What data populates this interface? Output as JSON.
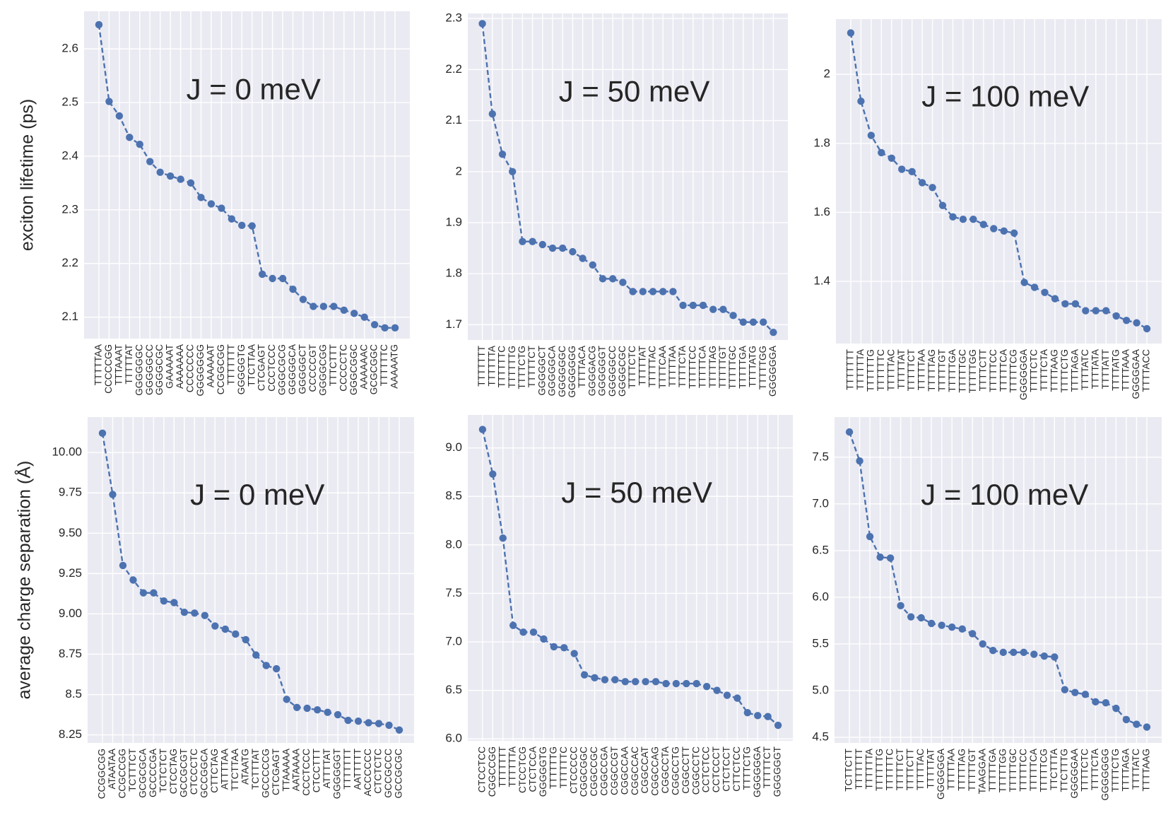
{
  "chart_data": [
    {
      "type": "line",
      "annotation": "J = 0 meV",
      "ylabel": "exciton lifetime (ps)",
      "color": "#4c72b0",
      "categories": [
        "TTTTTAA",
        "CCCCCGG",
        "TTTAAAT",
        "TTTTTAT",
        "GGGGGGC",
        "GGGGGCC",
        "GGGGCGC",
        "GAAAAAT",
        "AAAAAAA",
        "CCCCCCC",
        "GGGGGGG",
        "AAAAAAT",
        "CCGGCGG",
        "TTTTTTT",
        "GGGGGTG",
        "TTCTTAA",
        "CTCGAGT",
        "CCCTCCC",
        "GGGCGCG",
        "GGGGGCA",
        "GGGGGCT",
        "CCCCCGT",
        "GGGGCGG",
        "TTTCTTT",
        "CCCCCTC",
        "GGGCGGC",
        "AAAAAAC",
        "GCGCGGC",
        "TTTTTTC",
        "AAAAATG"
      ],
      "values": [
        2.645,
        2.502,
        2.475,
        2.435,
        2.422,
        2.39,
        2.37,
        2.363,
        2.357,
        2.35,
        2.323,
        2.311,
        2.303,
        2.283,
        2.271,
        2.27,
        2.18,
        2.172,
        2.172,
        2.152,
        2.133,
        2.12,
        2.12,
        2.12,
        2.113,
        2.107,
        2.1,
        2.086,
        2.08,
        2.08
      ],
      "ylim": [
        2.06,
        2.67
      ],
      "yticks": [
        2.1,
        2.2,
        2.3,
        2.4,
        2.5,
        2.6
      ],
      "grid": true
    },
    {
      "type": "line",
      "annotation": "J = 50 meV",
      "color": "#4c72b0",
      "categories": [
        "TTTTTTT",
        "TTTTTTA",
        "TTTTTTC",
        "TTTTTTG",
        "TTTTCTG",
        "TTTTTCT",
        "GGGGGCT",
        "GGGGGCA",
        "GGGGGGC",
        "GGGGGGG",
        "TTTTACA",
        "GGGGACG",
        "GGGGGGT",
        "GGGGGCC",
        "GGGGCGC",
        "TTTTCTC",
        "TTTTTAT",
        "TTTTTAC",
        "TTTTCAA",
        "TTTTTAA",
        "TTTTCTA",
        "TTTTTCC",
        "TTTTTCA",
        "TTTTTAG",
        "TTTTTGT",
        "TTTTTGC",
        "TTTTTGA",
        "TTTTATG",
        "TTTTTGG",
        "GGGGGGA"
      ],
      "values": [
        2.29,
        2.113,
        2.034,
        2.0,
        1.863,
        1.863,
        1.857,
        1.85,
        1.85,
        1.843,
        1.83,
        1.817,
        1.79,
        1.79,
        1.783,
        1.765,
        1.765,
        1.765,
        1.765,
        1.765,
        1.738,
        1.738,
        1.738,
        1.73,
        1.73,
        1.718,
        1.705,
        1.705,
        1.705,
        1.685
      ],
      "ylim": [
        1.67,
        2.31
      ],
      "yticks": [
        1.7,
        1.8,
        1.9,
        2.0,
        2.1,
        2.2,
        2.3
      ],
      "grid": true
    },
    {
      "type": "line",
      "annotation": "J = 100 meV",
      "color": "#4c72b0",
      "categories": [
        "TTTTTTT",
        "TTTTTTA",
        "TTTTTTG",
        "TTTTTTC",
        "TTTTTAC",
        "TTTTTAT",
        "TTTTTCT",
        "TTTTTAA",
        "TTTTTAG",
        "TTTTTGT",
        "TTTTTGA",
        "TTTTTGC",
        "TTTTTGG",
        "TTTTCTT",
        "TTTTTCC",
        "TTTTTCA",
        "TTTTTCG",
        "GGGGGGA",
        "TTTTCTC",
        "TTTTCTA",
        "TTTTAAG",
        "TTTTCTG",
        "TTTTAGA",
        "TTTTATC",
        "TTTTATA",
        "TTTTATT",
        "TTTTATG",
        "TTTTAAA",
        "GGGGGAA",
        "TTTTACC"
      ],
      "values": [
        2.12,
        1.922,
        1.823,
        1.773,
        1.757,
        1.725,
        1.718,
        1.686,
        1.672,
        1.62,
        1.587,
        1.58,
        1.58,
        1.565,
        1.553,
        1.546,
        1.54,
        1.397,
        1.383,
        1.368,
        1.35,
        1.335,
        1.335,
        1.315,
        1.315,
        1.315,
        1.3,
        1.287,
        1.28,
        1.263
      ],
      "ylim": [
        1.22,
        2.16
      ],
      "yticks": [
        1.4,
        1.6,
        1.8,
        2.0
      ],
      "grid": true
    },
    {
      "type": "line",
      "annotation": "J = 0 meV",
      "ylabel": "average charge separation (Å)",
      "color": "#4c72b0",
      "categories": [
        "CCGGCGG",
        "ATAATAA",
        "CCGCCGG",
        "TCTTTCT",
        "GCGCGCA",
        "GCCCCGA",
        "TCTCTCT",
        "CTCCTAG",
        "GCCGCGT",
        "CTCCCTC",
        "GCCGGCA",
        "CTTCTAG",
        "ATTTTAA",
        "TTCTTAA",
        "ATAATG",
        "TCTTTAT",
        "GCCCCCG",
        "CTCGAGT",
        "TTAAAAA",
        "AATAAAA",
        "CCCTCCC",
        "CTCCTTT",
        "ATTTTAT",
        "GGGGGGT",
        "TTTTTTT",
        "AATTTTT",
        "ACCCCCC",
        "CTCTCTC",
        "GCCGCCC",
        "GCCGCGC"
      ],
      "values": [
        10.12,
        9.74,
        9.3,
        9.21,
        9.13,
        9.13,
        9.08,
        9.07,
        9.01,
        9.005,
        8.99,
        8.925,
        8.905,
        8.875,
        8.84,
        8.745,
        8.68,
        8.66,
        8.47,
        8.42,
        8.415,
        8.405,
        8.39,
        8.375,
        8.34,
        8.335,
        8.325,
        8.32,
        8.31,
        8.28
      ],
      "ylim": [
        8.2,
        10.22
      ],
      "yticks": [
        8.25,
        8.5,
        8.75,
        {
          "value": 9,
          "label": "9.00"
        },
        9.25,
        {
          "value": 9.5,
          "label": "9.50"
        },
        9.75,
        {
          "value": 10,
          "label": "10.00"
        }
      ],
      "grid": true
    },
    {
      "type": "line",
      "annotation": "J = 50 meV",
      "color": "#4c72b0",
      "categories": [
        "CTCCTCC",
        "CGGCCGG",
        "TTTTTTT",
        "TTTTTTA",
        "CTCCTCG",
        "CTCTCCA",
        "GGGGGTG",
        "TTTTTTG",
        "TTTTTTC",
        "CTCCCCC",
        "CGGCGGC",
        "CGGCCGC",
        "CGGCCGA",
        "CGGCCGT",
        "CGGCCAA",
        "CGGCCAC",
        "CGGCCAT",
        "CGGCCAG",
        "CGGCCTA",
        "CGGCCTG",
        "CGGCCTT",
        "CGGCCTC",
        "CCTCTCC",
        "CCTCCCT",
        "CTCTCCT",
        "CTTCTCC",
        "TTTTCTG",
        "GGGGGGA",
        "TTTTTCT",
        "GGGGGGT"
      ],
      "values": [
        9.19,
        8.73,
        8.07,
        7.17,
        7.1,
        7.1,
        7.03,
        6.95,
        6.94,
        6.88,
        6.66,
        6.63,
        6.61,
        6.61,
        6.59,
        6.59,
        6.59,
        6.59,
        6.57,
        6.57,
        6.57,
        6.57,
        6.54,
        6.5,
        6.45,
        6.42,
        6.27,
        6.24,
        6.23,
        6.14
      ],
      "ylim": [
        5.98,
        9.34
      ],
      "yticks": [
        {
          "value": 6,
          "label": "6.0"
        },
        6.5,
        {
          "value": 7,
          "label": "7.0"
        },
        7.5,
        {
          "value": 8,
          "label": "8.0"
        },
        8.5,
        {
          "value": 9,
          "label": "9.0"
        }
      ],
      "grid": true
    },
    {
      "type": "line",
      "annotation": "J = 100 meV",
      "color": "#4c72b0",
      "categories": [
        "TCTTCTT",
        "TTTTTTT",
        "TTTTTTA",
        "TTTTTTG",
        "TTTTTTC",
        "TTTTTCT",
        "TTTTCTT",
        "TTTTTAC",
        "TTTTTAT",
        "GGGGGGA",
        "TTTTTAA",
        "TTTTTAG",
        "TTTTTGT",
        "TAAGGAA",
        "TTTTTGA",
        "TTTTTGG",
        "TTTTTGC",
        "TTTTTCC",
        "TTTTTCA",
        "TTTTTCG",
        "TTCTTTA",
        "TTCTTTG",
        "GGGGGAA",
        "TTTTCTC",
        "TTTTCTA",
        "GGGGGGG",
        "TTTTCTG",
        "TTTTAGA",
        "TTTTATC",
        "TTTTAAG"
      ],
      "values": [
        7.77,
        7.46,
        6.65,
        6.43,
        6.42,
        5.91,
        5.79,
        5.78,
        5.72,
        5.7,
        5.68,
        5.66,
        5.61,
        5.5,
        5.43,
        5.41,
        5.41,
        5.41,
        5.39,
        5.37,
        5.36,
        5.01,
        4.98,
        4.96,
        4.88,
        4.87,
        4.81,
        4.69,
        4.64,
        4.61
      ],
      "ylim": [
        4.44,
        7.93
      ],
      "yticks": [
        4.5,
        {
          "value": 5,
          "label": "5.0"
        },
        5.5,
        {
          "value": 6,
          "label": "6.0"
        },
        6.5,
        {
          "value": 7,
          "label": "7.0"
        },
        7.5
      ],
      "grid": true
    }
  ]
}
